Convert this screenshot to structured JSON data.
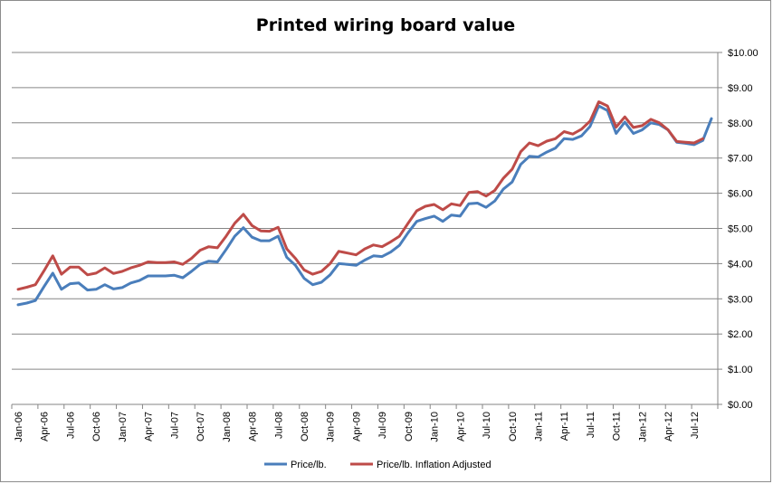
{
  "chart_data": {
    "type": "line",
    "title": "Printed wiring board value",
    "xlabel": "",
    "ylabel": "",
    "ylim": [
      0,
      10
    ],
    "y_ticks": [
      "$0.00",
      "$1.00",
      "$2.00",
      "$3.00",
      "$4.00",
      "$5.00",
      "$6.00",
      "$7.00",
      "$8.00",
      "$9.00",
      "$10.00"
    ],
    "x_tick_labels": [
      "Jan-06",
      "Apr-06",
      "Jul-06",
      "Oct-06",
      "Jan-07",
      "Apr-07",
      "Jul-07",
      "Oct-07",
      "Jan-08",
      "Apr-08",
      "Jul-08",
      "Oct-08",
      "Jan-09",
      "Apr-09",
      "Jul-09",
      "Oct-09",
      "Jan-10",
      "Apr-10",
      "Jul-10",
      "Oct-10",
      "Jan-11",
      "Apr-11",
      "Jul-11",
      "Oct-11",
      "Jan-12",
      "Apr-12",
      "Jul-12"
    ],
    "x_tick_every": 3,
    "grid": true,
    "legend_position": "bottom",
    "series": [
      {
        "name": "Price/lb.",
        "color": "#4a7ebb",
        "values": [
          2.83,
          2.88,
          2.95,
          3.35,
          3.73,
          3.27,
          3.43,
          3.45,
          3.25,
          3.27,
          3.4,
          3.28,
          3.32,
          3.45,
          3.52,
          3.65,
          3.65,
          3.65,
          3.67,
          3.6,
          3.78,
          3.98,
          4.07,
          4.05,
          4.4,
          4.78,
          5.02,
          4.75,
          4.65,
          4.65,
          4.78,
          4.18,
          3.95,
          3.58,
          3.4,
          3.47,
          3.68,
          4.0,
          3.98,
          3.95,
          4.1,
          4.22,
          4.2,
          4.33,
          4.52,
          4.88,
          5.2,
          5.28,
          5.35,
          5.2,
          5.38,
          5.35,
          5.7,
          5.72,
          5.6,
          5.78,
          6.12,
          6.32,
          6.82,
          7.05,
          7.03,
          7.17,
          7.28,
          7.55,
          7.53,
          7.63,
          7.9,
          8.48,
          8.35,
          7.7,
          8.02,
          7.7,
          7.8,
          8.0,
          7.95,
          7.8,
          7.45,
          7.42,
          7.38,
          7.5,
          8.12
        ]
      },
      {
        "name": "Price/lb. Inflation Adjusted",
        "color": "#be4b48",
        "values": [
          3.27,
          3.33,
          3.4,
          3.8,
          4.22,
          3.7,
          3.9,
          3.9,
          3.68,
          3.73,
          3.88,
          3.72,
          3.78,
          3.88,
          3.95,
          4.05,
          4.03,
          4.03,
          4.05,
          3.98,
          4.15,
          4.38,
          4.48,
          4.45,
          4.78,
          5.15,
          5.4,
          5.08,
          4.93,
          4.92,
          5.03,
          4.42,
          4.15,
          3.82,
          3.7,
          3.78,
          4.0,
          4.35,
          4.3,
          4.25,
          4.42,
          4.53,
          4.48,
          4.62,
          4.78,
          5.15,
          5.5,
          5.63,
          5.68,
          5.53,
          5.7,
          5.65,
          6.02,
          6.05,
          5.92,
          6.08,
          6.43,
          6.68,
          7.18,
          7.43,
          7.35,
          7.48,
          7.55,
          7.75,
          7.68,
          7.82,
          8.05,
          8.6,
          8.48,
          7.88,
          8.17,
          7.87,
          7.92,
          8.1,
          8.0,
          7.8,
          7.47,
          7.45,
          7.43,
          7.55
        ]
      }
    ]
  }
}
